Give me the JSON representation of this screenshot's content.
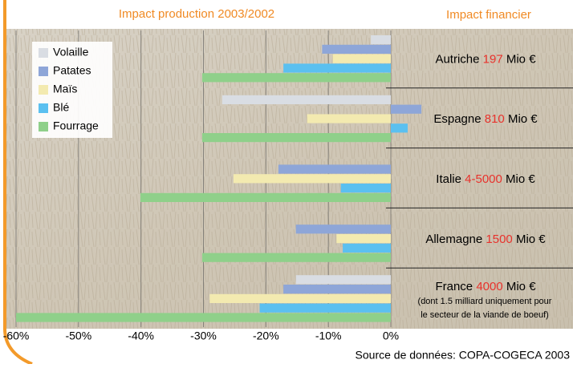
{
  "chart_data": {
    "type": "hbar",
    "title": "Impact production 2003/2002",
    "right_title": "Impact financier",
    "categories": [
      "Autriche",
      "Espagne",
      "Italie",
      "Allemagne",
      "France"
    ],
    "financial_impact": [
      "197",
      "810",
      "4-5000",
      "1500",
      "4000"
    ],
    "financial_unit": "Mio €",
    "france_note": [
      "(dont 1.5 milliard uniquement pour",
      "le secteur de la viande de boeuf)"
    ],
    "source": "Source de données: COPA-COGECA 2003",
    "series": [
      {
        "name": "Volaille",
        "color": "#d9dde3",
        "values": [
          -3.2,
          -27,
          null,
          null,
          -15.2
        ]
      },
      {
        "name": "Patates",
        "color": "#8ea6d8",
        "values": [
          -11,
          4.9,
          -18,
          -15.2,
          -17.2
        ]
      },
      {
        "name": "Maïs",
        "color": "#f3eab0",
        "values": [
          -9.3,
          -13.4,
          -25.2,
          -8.7,
          -29
        ]
      },
      {
        "name": "Blé",
        "color": "#5bc0f0",
        "values": [
          -17.2,
          2.7,
          -8,
          -7.7,
          -21
        ]
      },
      {
        "name": "Fourrage",
        "color": "#8fd08a",
        "values": [
          -30.2,
          -30.2,
          -40.1,
          -30.2,
          -60
        ]
      }
    ],
    "xlim": [
      -60,
      0
    ],
    "xticks": [
      {
        "value": -60,
        "label": "-60%"
      },
      {
        "value": -50,
        "label": "-50%"
      },
      {
        "value": -40,
        "label": "-40%"
      },
      {
        "value": -30,
        "label": "-30%"
      },
      {
        "value": -20,
        "label": "-20%"
      },
      {
        "value": -10,
        "label": "-10%"
      },
      {
        "value": 0,
        "label": "0%"
      }
    ],
    "grid": true,
    "legend": "top-left"
  }
}
